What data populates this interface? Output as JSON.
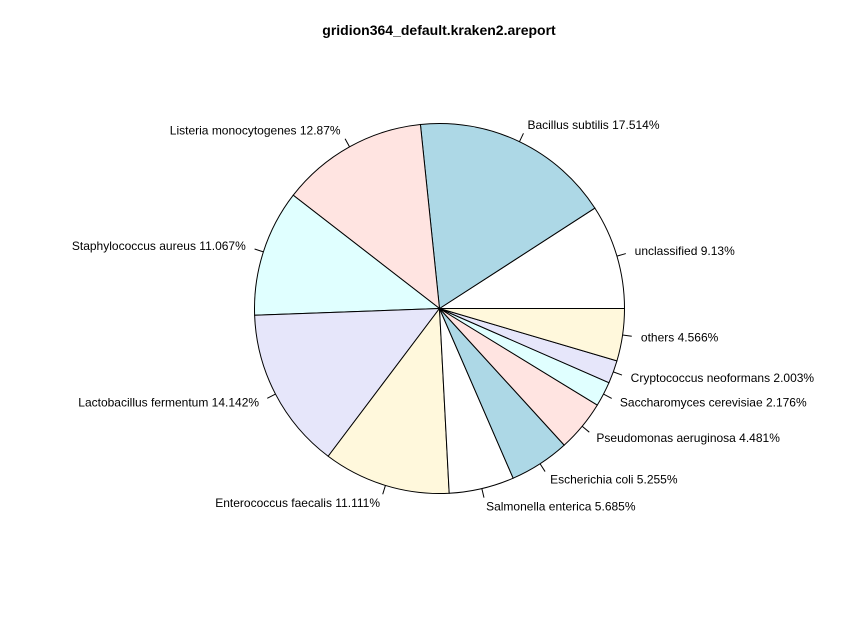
{
  "chart_data": {
    "type": "pie",
    "title": "gridion364_default.kraken2.areport",
    "slices": [
      {
        "name": "unclassified",
        "value": 9.13,
        "label": "unclassified 9.13%",
        "color": "#ffffff"
      },
      {
        "name": "Bacillus subtilis",
        "value": 17.514,
        "label": "Bacillus subtilis 17.514%",
        "color": "#add8e6"
      },
      {
        "name": "Listeria monocytogenes",
        "value": 12.87,
        "label": "Listeria monocytogenes 12.87%",
        "color": "#ffe4e1"
      },
      {
        "name": "Staphylococcus aureus",
        "value": 11.067,
        "label": "Staphylococcus aureus 11.067%",
        "color": "#e0ffff"
      },
      {
        "name": "Lactobacillus fermentum",
        "value": 14.142,
        "label": "Lactobacillus fermentum 14.142%",
        "color": "#e6e6fa"
      },
      {
        "name": "Enterococcus faecalis",
        "value": 11.111,
        "label": "Enterococcus faecalis 11.111%",
        "color": "#fff8dc"
      },
      {
        "name": "Salmonella enterica",
        "value": 5.685,
        "label": "Salmonella enterica 5.685%",
        "color": "#ffffff"
      },
      {
        "name": "Escherichia coli",
        "value": 5.255,
        "label": "Escherichia coli 5.255%",
        "color": "#add8e6"
      },
      {
        "name": "Pseudomonas aeruginosa",
        "value": 4.481,
        "label": "Pseudomonas aeruginosa 4.481%",
        "color": "#ffe4e1"
      },
      {
        "name": "Saccharomyces cerevisiae",
        "value": 2.176,
        "label": "Saccharomyces cerevisiae 2.176%",
        "color": "#e0ffff"
      },
      {
        "name": "Cryptococcus neoformans",
        "value": 2.003,
        "label": "Cryptococcus neoformans 2.003%",
        "color": "#e6e6fa"
      },
      {
        "name": "others",
        "value": 4.566,
        "label": "others 4.566%",
        "color": "#fff8dc"
      }
    ]
  }
}
